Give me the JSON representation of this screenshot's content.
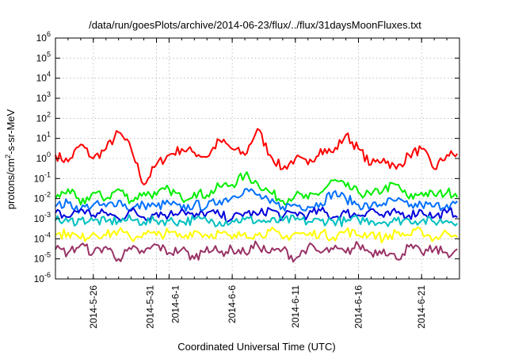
{
  "chart_data": {
    "type": "line",
    "title": "/data/run/goesPlots/archive/2014-06-23/flux/../flux/31daysMoonFluxes.txt",
    "xlabel": "Coordinated Universal Time (UTC)",
    "ylabel_parts": [
      "protons/cm",
      "2",
      "-s-sr-MeV"
    ],
    "yscale": "log",
    "grid": true,
    "xlim": [
      "2014-05-23",
      "2014-06-24"
    ],
    "ylim": [
      1e-06,
      1000000.0
    ],
    "yticks": [
      {
        "base": "10",
        "exp": "-6",
        "value": -6
      },
      {
        "base": "10",
        "exp": "-5",
        "value": -5
      },
      {
        "base": "10",
        "exp": "-4",
        "value": -4
      },
      {
        "base": "10",
        "exp": "-3",
        "value": -3
      },
      {
        "base": "10",
        "exp": "-2",
        "value": -2
      },
      {
        "base": "10",
        "exp": "-1",
        "value": -1
      },
      {
        "base": "10",
        "exp": "0",
        "value": 0
      },
      {
        "base": "10",
        "exp": "1",
        "value": 1
      },
      {
        "base": "10",
        "exp": "2",
        "value": 2
      },
      {
        "base": "10",
        "exp": "3",
        "value": 3
      },
      {
        "base": "10",
        "exp": "4",
        "value": 4
      },
      {
        "base": "10",
        "exp": "5",
        "value": 5
      },
      {
        "base": "10",
        "exp": "6",
        "value": 6
      }
    ],
    "xticks": [
      {
        "label": "2014-5-26",
        "date": "2014-05-26"
      },
      {
        "label": "2014-5-31",
        "date": "2014-05-31"
      },
      {
        "label": "2014-6-1",
        "date": "2014-06-01"
      },
      {
        "label": "2014-6-6",
        "date": "2014-06-06"
      },
      {
        "label": "2014-6-11",
        "date": "2014-06-11"
      },
      {
        "label": "2014-6-16",
        "date": "2014-06-16"
      },
      {
        "label": "2014-6-21",
        "date": "2014-06-21"
      }
    ],
    "series": [
      {
        "color": "#ff0000",
        "x": [
          "2014-05-23",
          "2014-05-24",
          "2014-05-25",
          "2014-05-26",
          "2014-05-27",
          "2014-05-28",
          "2014-05-29",
          "2014-05-30",
          "2014-05-31",
          "2014-06-01",
          "2014-06-02",
          "2014-06-03",
          "2014-06-04",
          "2014-06-05",
          "2014-06-06",
          "2014-06-07",
          "2014-06-08",
          "2014-06-09",
          "2014-06-10",
          "2014-06-11",
          "2014-06-12",
          "2014-06-13",
          "2014-06-14",
          "2014-06-15",
          "2014-06-16",
          "2014-06-17",
          "2014-06-18",
          "2014-06-19",
          "2014-06-20",
          "2014-06-21",
          "2014-06-22",
          "2014-06-23"
        ],
        "y": [
          1.5,
          0.7,
          5,
          1.0,
          3,
          20,
          3,
          0.05,
          0.5,
          1.5,
          3,
          2,
          1.2,
          8,
          3,
          1.5,
          30,
          1.5,
          0.3,
          1.0,
          0.5,
          3,
          2,
          15,
          3,
          0.5,
          1.0,
          0.3,
          1.5,
          3,
          0.3,
          1.5
        ]
      },
      {
        "color": "#00ee00",
        "x": [
          "2014-05-23",
          "2014-05-24",
          "2014-05-25",
          "2014-05-26",
          "2014-05-27",
          "2014-05-28",
          "2014-05-29",
          "2014-05-30",
          "2014-05-31",
          "2014-06-01",
          "2014-06-02",
          "2014-06-03",
          "2014-06-04",
          "2014-06-05",
          "2014-06-06",
          "2014-06-07",
          "2014-06-08",
          "2014-06-09",
          "2014-06-10",
          "2014-06-11",
          "2014-06-12",
          "2014-06-13",
          "2014-06-14",
          "2014-06-15",
          "2014-06-16",
          "2014-06-17",
          "2014-06-18",
          "2014-06-19",
          "2014-06-20",
          "2014-06-21",
          "2014-06-22",
          "2014-06-23"
        ],
        "y": [
          0.01,
          0.03,
          0.005,
          0.02,
          0.01,
          0.03,
          0.008,
          0.02,
          0.015,
          0.03,
          0.01,
          0.02,
          0.015,
          0.04,
          0.05,
          0.15,
          0.06,
          0.02,
          0.008,
          0.015,
          0.01,
          0.02,
          0.08,
          0.04,
          0.02,
          0.015,
          0.03,
          0.05,
          0.01,
          0.02,
          0.015,
          0.02
        ]
      },
      {
        "color": "#0070ff",
        "x": [
          "2014-05-23",
          "2014-05-24",
          "2014-05-25",
          "2014-05-26",
          "2014-05-27",
          "2014-05-28",
          "2014-05-29",
          "2014-05-30",
          "2014-05-31",
          "2014-06-01",
          "2014-06-02",
          "2014-06-03",
          "2014-06-04",
          "2014-06-05",
          "2014-06-06",
          "2014-06-07",
          "2014-06-08",
          "2014-06-09",
          "2014-06-10",
          "2014-06-11",
          "2014-06-12",
          "2014-06-13",
          "2014-06-14",
          "2014-06-15",
          "2014-06-16",
          "2014-06-17",
          "2014-06-18",
          "2014-06-19",
          "2014-06-20",
          "2014-06-21",
          "2014-06-22",
          "2014-06-23"
        ],
        "y": [
          0.004,
          0.006,
          0.003,
          0.005,
          0.004,
          0.008,
          0.003,
          0.005,
          0.004,
          0.006,
          0.003,
          0.005,
          0.004,
          0.008,
          0.012,
          0.03,
          0.015,
          0.006,
          0.004,
          0.005,
          0.004,
          0.006,
          0.02,
          0.01,
          0.005,
          0.004,
          0.006,
          0.008,
          0.004,
          0.005,
          0.004,
          0.005
        ]
      },
      {
        "color": "#0000dd",
        "x": [
          "2014-05-23",
          "2014-05-24",
          "2014-05-25",
          "2014-05-26",
          "2014-05-27",
          "2014-05-28",
          "2014-05-29",
          "2014-05-30",
          "2014-05-31",
          "2014-06-01",
          "2014-06-02",
          "2014-06-03",
          "2014-06-04",
          "2014-06-05",
          "2014-06-06",
          "2014-06-07",
          "2014-06-08",
          "2014-06-09",
          "2014-06-10",
          "2014-06-11",
          "2014-06-12",
          "2014-06-13",
          "2014-06-14",
          "2014-06-15",
          "2014-06-16",
          "2014-06-17",
          "2014-06-18",
          "2014-06-19",
          "2014-06-20",
          "2014-06-21",
          "2014-06-22",
          "2014-06-23"
        ],
        "y": [
          0.002,
          0.0012,
          0.003,
          0.0015,
          0.002,
          0.001,
          0.0025,
          0.0012,
          0.002,
          0.0015,
          0.003,
          0.0012,
          0.002,
          0.0015,
          0.001,
          0.002,
          0.0015,
          0.003,
          0.0012,
          0.002,
          0.0015,
          0.0025,
          0.0012,
          0.002,
          0.0015,
          0.003,
          0.0012,
          0.002,
          0.0015,
          0.0025,
          0.0012,
          0.002
        ]
      },
      {
        "color": "#00c0c0",
        "x": [
          "2014-05-23",
          "2014-05-24",
          "2014-05-25",
          "2014-05-26",
          "2014-05-27",
          "2014-05-28",
          "2014-05-29",
          "2014-05-30",
          "2014-05-31",
          "2014-06-01",
          "2014-06-02",
          "2014-06-03",
          "2014-06-04",
          "2014-06-05",
          "2014-06-06",
          "2014-06-07",
          "2014-06-08",
          "2014-06-09",
          "2014-06-10",
          "2014-06-11",
          "2014-06-12",
          "2014-06-13",
          "2014-06-14",
          "2014-06-15",
          "2014-06-16",
          "2014-06-17",
          "2014-06-18",
          "2014-06-19",
          "2014-06-20",
          "2014-06-21",
          "2014-06-22",
          "2014-06-23"
        ],
        "y": [
          0.0008,
          0.0007,
          0.0009,
          0.0008,
          0.0007,
          0.0008,
          0.0009,
          0.0007,
          0.0008,
          0.0008,
          0.0007,
          0.0009,
          0.0008,
          0.0007,
          0.0008,
          0.0009,
          0.0008,
          0.0007,
          0.0008,
          0.0009,
          0.0007,
          0.0008,
          0.0008,
          0.0007,
          0.0009,
          0.0008,
          0.0007,
          0.0008,
          0.0009,
          0.0008,
          0.0007,
          0.0008
        ]
      },
      {
        "color": "#ffff00",
        "x": [
          "2014-05-23",
          "2014-05-24",
          "2014-05-25",
          "2014-05-26",
          "2014-05-27",
          "2014-05-28",
          "2014-05-29",
          "2014-05-30",
          "2014-05-31",
          "2014-06-01",
          "2014-06-02",
          "2014-06-03",
          "2014-06-04",
          "2014-06-05",
          "2014-06-06",
          "2014-06-07",
          "2014-06-08",
          "2014-06-09",
          "2014-06-10",
          "2014-06-11",
          "2014-06-12",
          "2014-06-13",
          "2014-06-14",
          "2014-06-15",
          "2014-06-16",
          "2014-06-17",
          "2014-06-18",
          "2014-06-19",
          "2014-06-20",
          "2014-06-21",
          "2014-06-22",
          "2014-06-23"
        ],
        "y": [
          0.00015,
          0.0002,
          0.0001,
          0.0002,
          0.00015,
          0.00025,
          0.0001,
          0.0002,
          0.00015,
          0.0002,
          0.00012,
          0.00025,
          0.00015,
          0.0002,
          0.0001,
          0.0002,
          0.00015,
          0.00025,
          0.0001,
          0.0002,
          0.00015,
          0.0002,
          0.00012,
          0.00025,
          0.00015,
          0.0002,
          0.0001,
          0.0002,
          0.00015,
          0.00025,
          0.0001,
          0.0002
        ]
      },
      {
        "color": "#993366",
        "x": [
          "2014-05-23",
          "2014-05-24",
          "2014-05-25",
          "2014-05-26",
          "2014-05-27",
          "2014-05-28",
          "2014-05-29",
          "2014-05-30",
          "2014-05-31",
          "2014-06-01",
          "2014-06-02",
          "2014-06-03",
          "2014-06-04",
          "2014-06-05",
          "2014-06-06",
          "2014-06-07",
          "2014-06-08",
          "2014-06-09",
          "2014-06-10",
          "2014-06-11",
          "2014-06-12",
          "2014-06-13",
          "2014-06-14",
          "2014-06-15",
          "2014-06-16",
          "2014-06-17",
          "2014-06-18",
          "2014-06-19",
          "2014-06-20",
          "2014-06-21",
          "2014-06-22",
          "2014-06-23"
        ],
        "y": [
          3e-05,
          2e-05,
          5e-05,
          2e-05,
          4e-05,
          1e-05,
          3e-05,
          2e-05,
          5e-05,
          2e-05,
          3e-05,
          1e-05,
          4e-05,
          2e-05,
          3e-05,
          2e-05,
          5e-05,
          2e-05,
          3e-05,
          1e-05,
          4e-05,
          2e-05,
          3e-05,
          2e-05,
          5e-05,
          2e-05,
          3e-05,
          1e-05,
          4e-05,
          2e-05,
          3e-05,
          2e-05
        ]
      }
    ]
  }
}
